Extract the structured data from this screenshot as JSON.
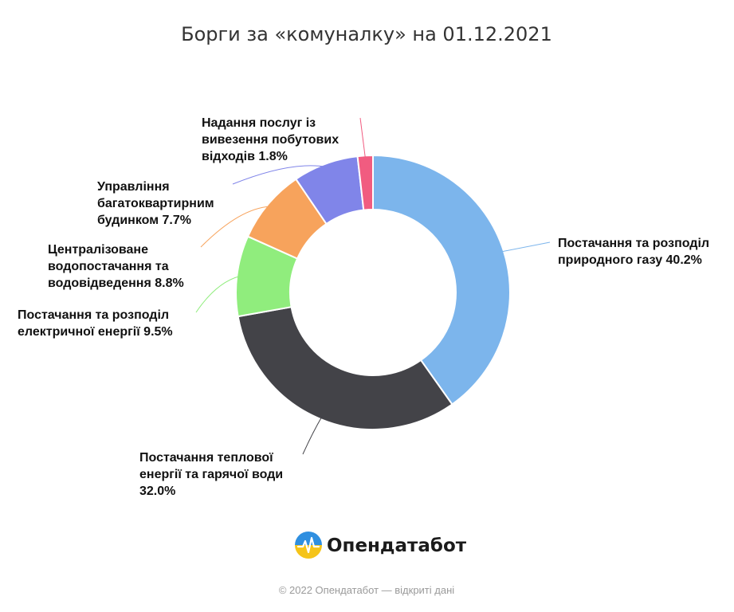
{
  "chart_data": {
    "type": "pie",
    "title": "Борги за «комуналку» на 01.12.2021",
    "slices": [
      {
        "label_lines": [
          "Постачання та розподіл",
          "природного газу 40.2%"
        ],
        "value": 40.2,
        "color": "#7cb5ec"
      },
      {
        "label_lines": [
          "Постачання теплової",
          "енергії та гарячої води",
          "32.0%"
        ],
        "value": 32.0,
        "color": "#434348"
      },
      {
        "label_lines": [
          "Постачання та розподіл",
          "електричної енергії 9.5%"
        ],
        "value": 9.5,
        "color": "#90ed7d"
      },
      {
        "label_lines": [
          "Централізоване",
          "водопостачання та",
          "водовідведення 8.8%"
        ],
        "value": 8.8,
        "color": "#f7a35c"
      },
      {
        "label_lines": [
          "Управління",
          "багатоквартирним",
          "будинком 7.7%"
        ],
        "value": 7.7,
        "color": "#8085e9"
      },
      {
        "label_lines": [
          "Надання послуг із",
          "вивезення побутових",
          "відходів 1.8%"
        ],
        "value": 1.8,
        "color": "#f15c80"
      }
    ]
  },
  "branding": {
    "brand_name": "Опендатабот",
    "logo_icon": "opendatabot-logo-icon",
    "copyright": "© 2022 Опендатабот — відкриті дані"
  }
}
